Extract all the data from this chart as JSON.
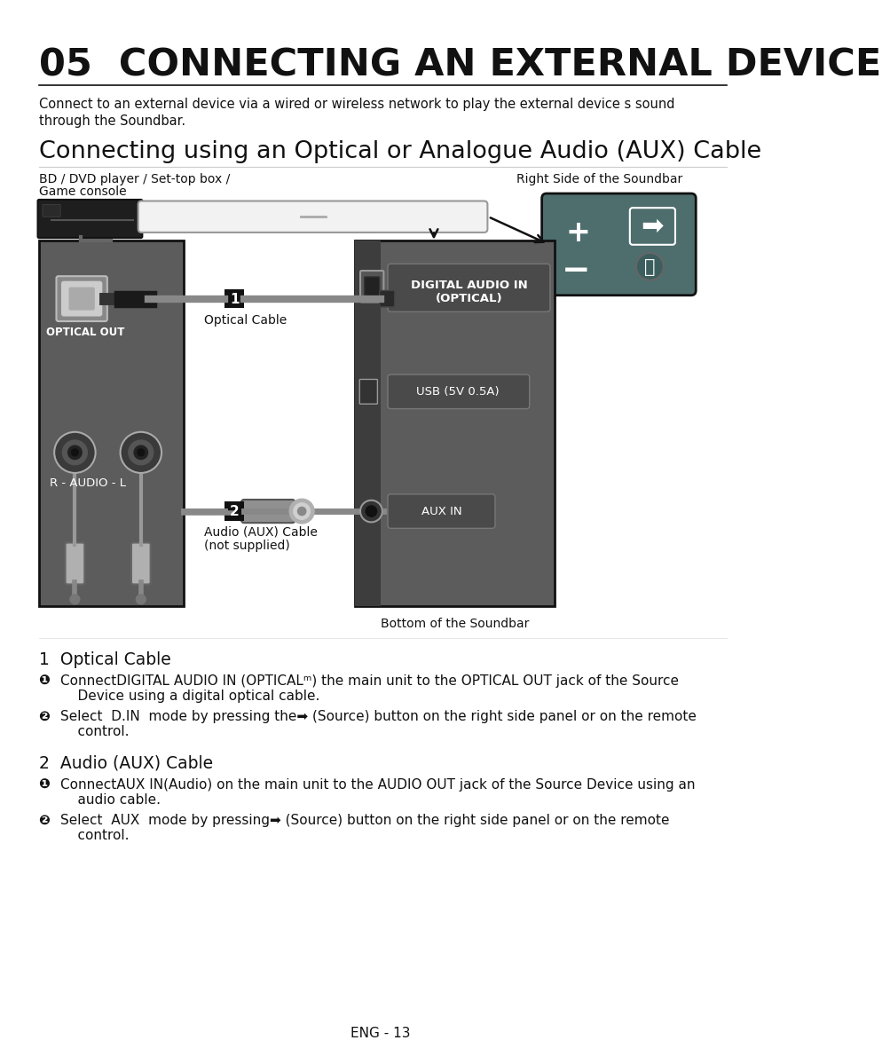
{
  "title": "05  CONNECTING AN EXTERNAL DEVICE",
  "subtitle": "Connecting using an Optical or Analogue Audio (AUX) Cable",
  "intro_line1": "Connect to an external device via a wired or wireless network to play the external device s sound",
  "intro_line2": "through the Soundbar.",
  "label_bd_line1": "BD / DVD player / Set-top box /",
  "label_bd_line2": "Game console",
  "label_right_side": "Right Side of the Soundbar",
  "label_optical_cable": "Optical Cable",
  "label_audio_cable_line1": "Audio (AUX) Cable",
  "label_audio_cable_line2": "(not supplied)",
  "label_bottom": "Bottom of the Soundbar",
  "label_optical_out": "OPTICAL OUT",
  "label_r_audio_l": "R - AUDIO - L",
  "label_digital_audio_line1": "DIGITAL AUDIO IN",
  "label_digital_audio_line2": "(OPTICAL)",
  "label_usb": "USB (5V 0.5A)",
  "label_aux_in": "AUX IN",
  "section1_title": "1  Optical Cable",
  "section1_b1_prefix": "❶ ",
  "section1_b1_text": "ConnectDIGITAL AUDIO IN (OPTICALᵐ) the main unit to the OPTICAL OUT jack of the Source",
  "section1_b1_line2": "    Device using a digital optical cable.",
  "section1_b2_prefix": "❷ ",
  "section1_b2_text": "Select  D.IN  mode by pressing the➡ (Source) button on the right side panel or on the remote",
  "section1_b2_line2": "    control.",
  "section2_title": "2  Audio (AUX) Cable",
  "section2_b1_prefix": "❶ ",
  "section2_b1_text": "ConnectAUX IN(Audio) on the main unit to the AUDIO OUT jack of the Source Device using an",
  "section2_b1_line2": "    audio cable.",
  "section2_b2_prefix": "❷ ",
  "section2_b2_text": "Select  AUX  mode by pressing➡ (Source) button on the right side panel or on the remote",
  "section2_b2_line2": "    control.",
  "footer": "ENG - 13",
  "bg_color": "#ffffff",
  "text_color": "#111111",
  "panel_color": "#5c5c5c",
  "panel_dark": "#3d3d3d",
  "soundbar_color": "#f2f2f2",
  "remote_bg": "#4e6e6e",
  "label_box_color": "#4a4a4a",
  "cable_color": "#888888"
}
